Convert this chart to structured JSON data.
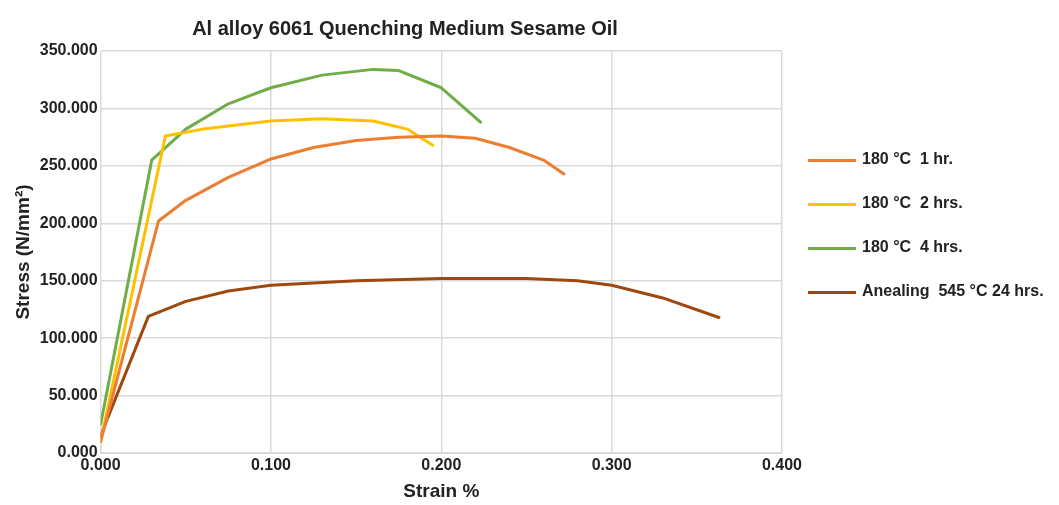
{
  "chart_data": {
    "type": "line",
    "title": "Al alloy 6061 Quenching Medium Sesame Oil",
    "xlabel": "Strain %",
    "ylabel": "Stress (N/mm²)",
    "xlim": [
      0,
      0.4
    ],
    "xticks": [
      {
        "value": 0,
        "label": "0.000"
      },
      {
        "value": 0.1,
        "label": "0.100"
      },
      {
        "value": 0.2,
        "label": "0.200"
      },
      {
        "value": 0.3,
        "label": "0.300"
      },
      {
        "value": 0.4,
        "label": "0.400"
      }
    ],
    "ylim": [
      0,
      350
    ],
    "yticks": [
      {
        "value": 0,
        "label": "0.000"
      },
      {
        "value": 50,
        "label": "50.000"
      },
      {
        "value": 100,
        "label": "100.000"
      },
      {
        "value": 150,
        "label": "150.000"
      },
      {
        "value": 200,
        "label": "200.000"
      },
      {
        "value": 250,
        "label": "250.000"
      },
      {
        "value": 300,
        "label": "300.000"
      },
      {
        "value": 350,
        "label": "350.000"
      }
    ],
    "grid": true,
    "legend": "right",
    "marker": "none",
    "line_style": "solid",
    "series": [
      {
        "name": "180 °C  1 hr.",
        "color": "#ed7d31",
        "x": [
          0,
          0.034,
          0.05,
          0.075,
          0.1,
          0.125,
          0.15,
          0.175,
          0.2,
          0.22,
          0.24,
          0.26,
          0.272
        ],
        "values": [
          10,
          202,
          220,
          240,
          256,
          266,
          272,
          275,
          276,
          274,
          266,
          255,
          243
        ]
      },
      {
        "name": "180 °C  2 hrs.",
        "color": "#ffc000",
        "x": [
          0,
          0.038,
          0.06,
          0.1,
          0.13,
          0.16,
          0.18,
          0.195
        ],
        "values": [
          10,
          276,
          282,
          289,
          291,
          289,
          282,
          268
        ]
      },
      {
        "name": "180 °C  4 hrs.",
        "color": "#70ad47",
        "x": [
          0,
          0.03,
          0.05,
          0.075,
          0.1,
          0.13,
          0.16,
          0.175,
          0.2,
          0.223
        ],
        "values": [
          25,
          255,
          282,
          304,
          318,
          329,
          334,
          333,
          318,
          288
        ]
      },
      {
        "name": "Anealing  545 °C 24 hrs.",
        "color": "#9e480e",
        "x": [
          0,
          0.028,
          0.05,
          0.075,
          0.1,
          0.15,
          0.2,
          0.25,
          0.28,
          0.3,
          0.33,
          0.363
        ],
        "values": [
          15,
          119,
          132,
          141,
          146,
          150,
          152,
          152,
          150,
          146,
          135,
          118
        ]
      }
    ]
  }
}
